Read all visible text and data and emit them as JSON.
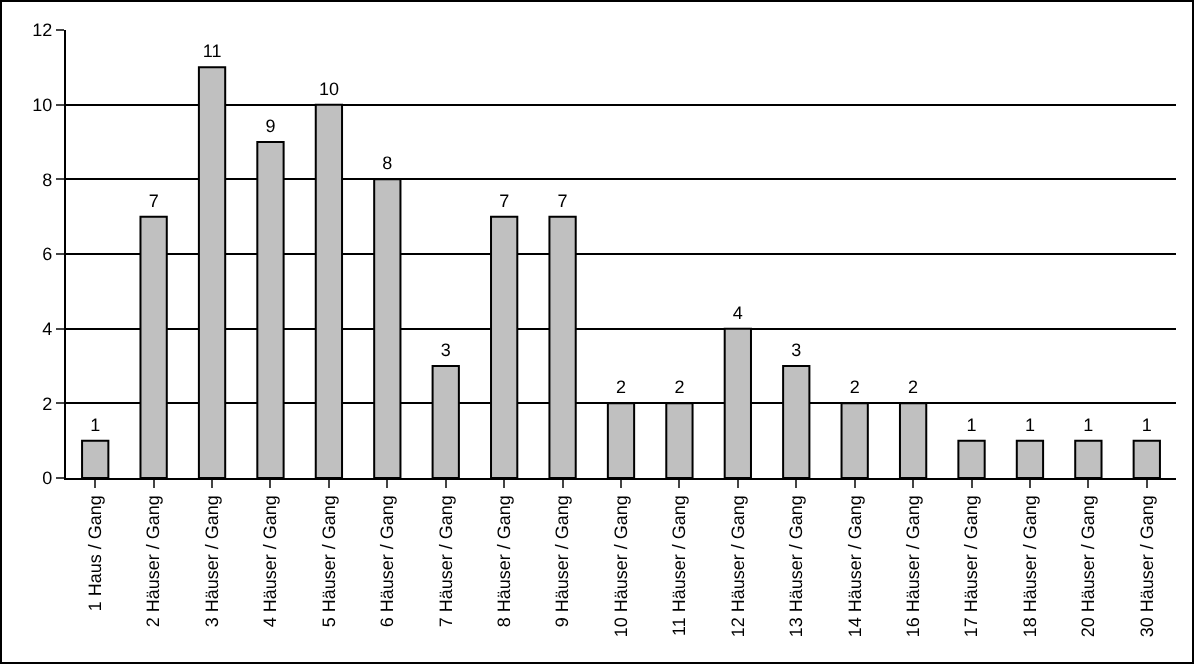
{
  "chart_data": {
    "type": "bar",
    "categories": [
      "1 Haus / Gang",
      "2 Häuser / Gang",
      "3 Häuser / Gang",
      "4 Häuser / Gang",
      "5 Häuser / Gang",
      "6 Häuser / Gang",
      "7 Häuser / Gang",
      "8 Häuser / Gang",
      "9 Häuser / Gang",
      "10 Häuser / Gang",
      "11 Häuser / Gang",
      "12 Häuser / Gang",
      "13 Häuser / Gang",
      "14 Häuser / Gang",
      "16 Häuser / Gang",
      "17 Häuser / Gang",
      "18 Häuser / Gang",
      "20 Häuser / Gang",
      "30 Häuser / Gang"
    ],
    "values": [
      1,
      7,
      11,
      9,
      10,
      8,
      3,
      7,
      7,
      2,
      2,
      4,
      3,
      2,
      2,
      1,
      1,
      1,
      1
    ],
    "color": "#c0c0c0",
    "ylim": [
      0,
      12
    ],
    "yticks": [
      0,
      2,
      4,
      6,
      8,
      10,
      12
    ],
    "grid": "y",
    "data_labels": true
  }
}
